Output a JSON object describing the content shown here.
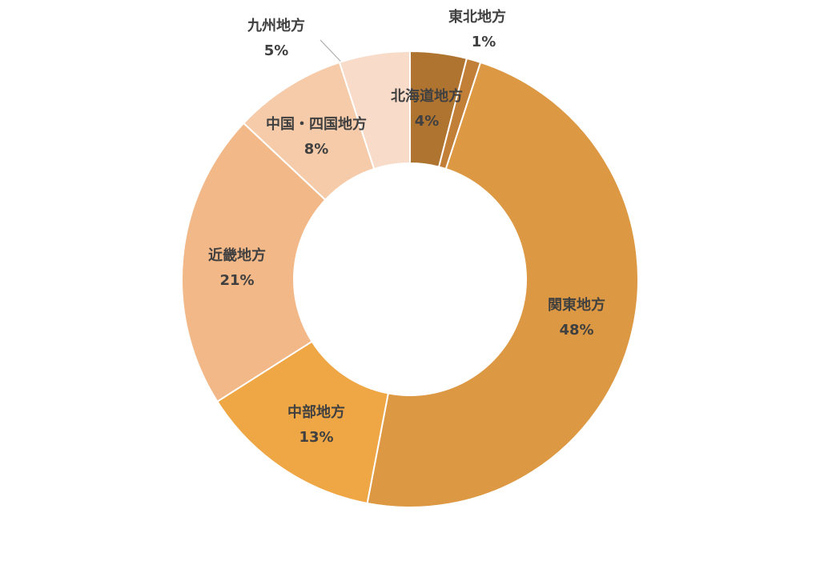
{
  "chart_data": {
    "type": "donut",
    "categories": [
      "北海道地方",
      "東北地方",
      "関東地方",
      "中部地方",
      "近畿地方",
      "中国・四国地方",
      "九州地方"
    ],
    "values": [
      4,
      1,
      48,
      13,
      21,
      8,
      5
    ],
    "value_labels": [
      "4%",
      "1%",
      "48%",
      "13%",
      "21%",
      "8%",
      "5%"
    ],
    "colors": [
      "#b07431",
      "#c27f38",
      "#dc9842",
      "#efa746",
      "#f2b887",
      "#f6cba9",
      "#f8dbc8"
    ]
  }
}
